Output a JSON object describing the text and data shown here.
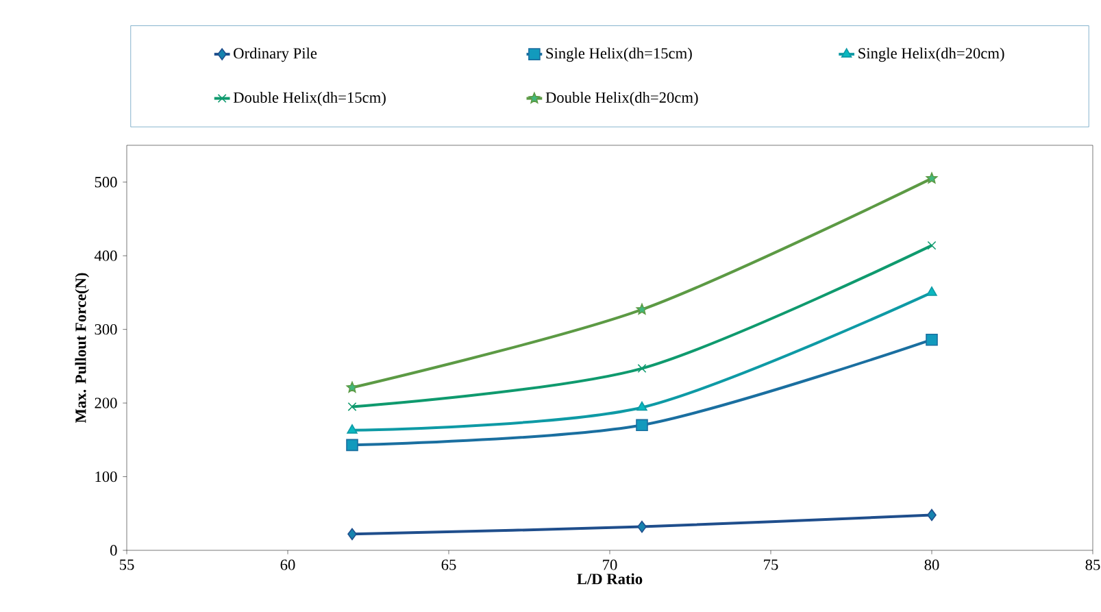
{
  "chart_data": {
    "type": "line",
    "xlabel": "L/D Ratio",
    "ylabel": "Max. Pullout Force(N)",
    "x": [
      62,
      71,
      80
    ],
    "series": [
      {
        "name": "Ordinary Pile",
        "color": "#1f4e8c",
        "marker": "diamond",
        "values": [
          22,
          32,
          48
        ]
      },
      {
        "name": "Single Helix(dh=15cm)",
        "color": "#1a6fa0",
        "marker": "square",
        "values": [
          143,
          170,
          286
        ]
      },
      {
        "name": "Single Helix(dh=20cm)",
        "color": "#0e9aa5",
        "marker": "triangle",
        "values": [
          163,
          194,
          350
        ]
      },
      {
        "name": "Double Helix(dh=15cm)",
        "color": "#0f9a6e",
        "marker": "cross",
        "values": [
          195,
          247,
          414
        ]
      },
      {
        "name": "Double Helix(dh=20cm)",
        "color": "#5c9a44",
        "marker": "star",
        "values": [
          221,
          327,
          505
        ]
      }
    ],
    "xlim": [
      55,
      85
    ],
    "xticks": [
      55,
      60,
      65,
      70,
      75,
      80,
      85
    ],
    "ylim": [
      0,
      550
    ],
    "yticks": [
      0,
      100,
      200,
      300,
      400,
      500
    ],
    "legend": "top",
    "grid": false,
    "line_style": "solid"
  }
}
